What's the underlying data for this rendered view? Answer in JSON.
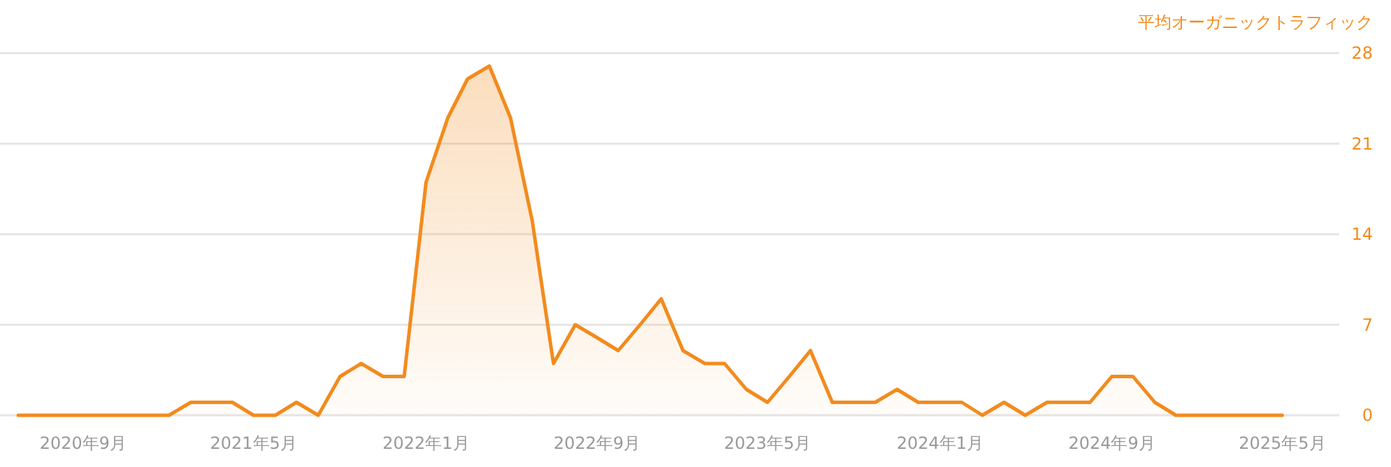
{
  "chart_data": {
    "type": "area",
    "ylabel": "平均オーガニックトラフィック",
    "x": [
      "2020-06",
      "2020-07",
      "2020-08",
      "2020-09",
      "2020-10",
      "2020-11",
      "2020-12",
      "2021-01",
      "2021-02",
      "2021-03",
      "2021-04",
      "2021-05",
      "2021-06",
      "2021-07",
      "2021-08",
      "2021-09",
      "2021-10",
      "2021-11",
      "2021-12",
      "2022-01",
      "2022-02",
      "2022-03",
      "2022-04",
      "2022-05",
      "2022-06",
      "2022-07",
      "2022-08",
      "2022-09",
      "2022-10",
      "2022-11",
      "2022-12",
      "2023-01",
      "2023-02",
      "2023-03",
      "2023-04",
      "2023-05",
      "2023-06",
      "2023-07",
      "2023-08",
      "2023-09",
      "2023-10",
      "2023-11",
      "2023-12",
      "2024-01",
      "2024-02",
      "2024-03",
      "2024-04",
      "2024-05",
      "2024-06",
      "2024-07",
      "2024-08",
      "2024-09",
      "2024-10",
      "2024-11",
      "2024-12",
      "2025-01",
      "2025-02",
      "2025-03",
      "2025-04",
      "2025-05"
    ],
    "series": [
      {
        "color": "#f28b1e",
        "values": [
          0,
          0,
          0,
          0,
          0,
          0,
          0,
          0,
          1,
          1,
          1,
          0,
          0,
          1,
          0,
          3,
          4,
          3,
          3,
          18,
          23,
          26,
          27,
          23,
          15,
          4,
          7,
          6,
          5,
          7,
          9,
          5,
          4,
          4,
          2,
          1,
          3,
          5,
          1,
          1,
          1,
          2,
          1,
          1,
          1,
          0,
          1,
          0,
          1,
          1,
          1,
          3,
          3,
          1,
          0,
          0,
          0,
          0,
          0,
          0
        ]
      }
    ],
    "xlim": [
      "2020-05-06",
      "2025-07-21"
    ],
    "xticks": [
      {
        "value": "2020-09",
        "label": "2020年9月"
      },
      {
        "value": "2021-05",
        "label": "2021年5月"
      },
      {
        "value": "2022-01",
        "label": "2022年1月"
      },
      {
        "value": "2022-09",
        "label": "2022年9月"
      },
      {
        "value": "2023-05",
        "label": "2023年5月"
      },
      {
        "value": "2024-01",
        "label": "2024年1月"
      },
      {
        "value": "2024-09",
        "label": "2024年9月"
      },
      {
        "value": "2025-05",
        "label": "2025年5月"
      }
    ],
    "ylim": [
      0,
      28
    ],
    "yticks": [
      0,
      7,
      14,
      21,
      28
    ],
    "grid": "y"
  }
}
